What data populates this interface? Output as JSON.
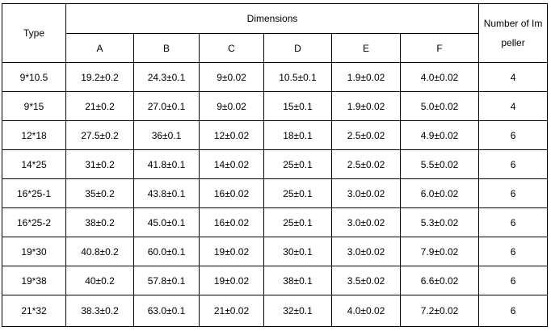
{
  "table": {
    "header": {
      "type": "Type",
      "dimensions": "Dimensions",
      "number": "Number of Impeller",
      "columns": [
        "A",
        "B",
        "C",
        "D",
        "E",
        "F"
      ]
    },
    "rows": [
      [
        "9*10.5",
        "19.2±0.2",
        "24.3±0.1",
        "9±0.02",
        "10.5±0.1",
        "1.9±0.02",
        "4.0±0.02",
        "4"
      ],
      [
        "9*15",
        "21±0.2",
        "27.0±0.1",
        "9±0.02",
        "15±0.1",
        "1.9±0.02",
        "5.0±0.02",
        "4"
      ],
      [
        "12*18",
        "27.5±0.2",
        "36±0.1",
        "12±0.02",
        "18±0.1",
        "2.5±0.02",
        "4.9±0.02",
        "6"
      ],
      [
        "14*25",
        "31±0.2",
        "41.8±0.1",
        "14±0.02",
        "25±0.1",
        "2.5±0.02",
        "5.5±0.02",
        "6"
      ],
      [
        "16*25-1",
        "35±0.2",
        "43.8±0.1",
        "16±0.02",
        "25±0.1",
        "3.0±0.02",
        "6.0±0.02",
        "6"
      ],
      [
        "16*25-2",
        "38±0.2",
        "45.0±0.1",
        "16±0.02",
        "25±0.1",
        "3.0±0.02",
        "5.3±0.02",
        "6"
      ],
      [
        "19*30",
        "40.8±0.2",
        "60.0±0.1",
        "19±0.02",
        "30±0.1",
        "3.0±0.02",
        "7.9±0.02",
        "6"
      ],
      [
        "19*38",
        "40±0.2",
        "57.8±0.1",
        "19±0.02",
        "38±0.1",
        "3.5±0.02",
        "6.6±0.02",
        "6"
      ],
      [
        "21*32",
        "38.3±0.2",
        "63.0±0.1",
        "21±0.02",
        "32±0.1",
        "4.0±0.02",
        "7.2±0.02",
        "6"
      ]
    ]
  }
}
